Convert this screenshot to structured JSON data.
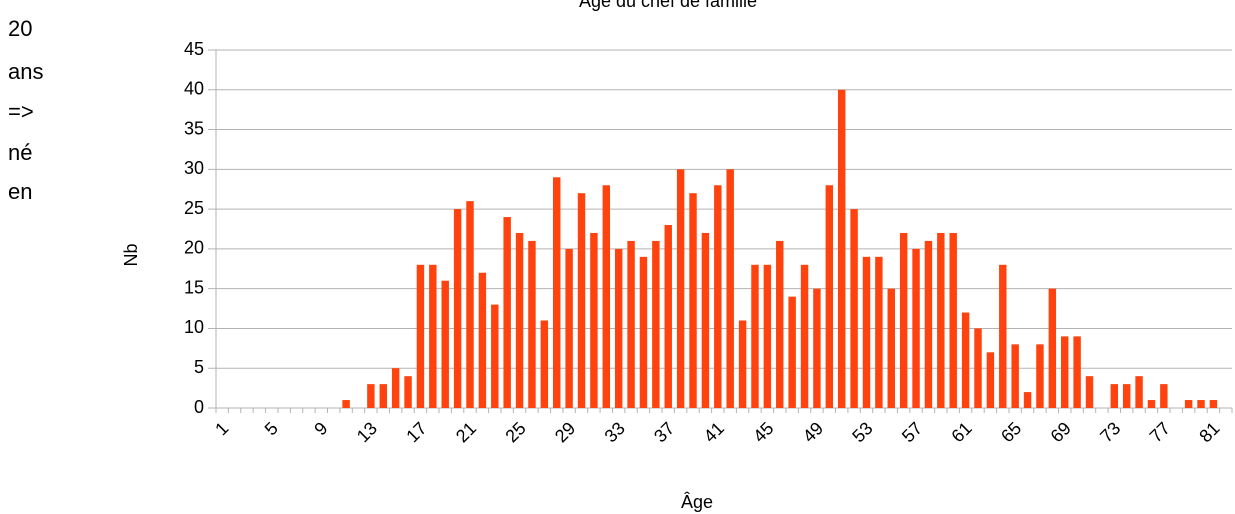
{
  "side_note": [
    "20",
    "ans",
    "=>",
    "né",
    "en"
  ],
  "chart_data": {
    "type": "bar",
    "title": "Âge du chef de famille",
    "x_label": "Âge",
    "y_label": "Nb",
    "categories": [
      "1",
      null,
      null,
      null,
      "5",
      null,
      null,
      null,
      "9",
      null,
      null,
      null,
      "13",
      null,
      null,
      null,
      "17",
      null,
      null,
      null,
      "21",
      null,
      null,
      null,
      "25",
      null,
      null,
      null,
      "29",
      null,
      null,
      null,
      "33",
      null,
      null,
      null,
      "37",
      null,
      null,
      null,
      "41",
      null,
      null,
      null,
      "45",
      null,
      null,
      null,
      "49",
      null,
      null,
      null,
      "53",
      null,
      null,
      null,
      "57",
      null,
      null,
      null,
      "61",
      null,
      null,
      null,
      "65",
      null,
      null,
      null,
      "69",
      null,
      null,
      null,
      "73",
      null,
      null,
      null,
      "77",
      null,
      null,
      null,
      "81",
      null
    ],
    "values": [
      0,
      0,
      0,
      0,
      0,
      0,
      0,
      0,
      0,
      0,
      1,
      0,
      3,
      3,
      5,
      4,
      18,
      18,
      16,
      25,
      26,
      17,
      13,
      24,
      22,
      21,
      11,
      29,
      20,
      27,
      22,
      28,
      20,
      21,
      19,
      21,
      23,
      30,
      27,
      22,
      28,
      30,
      11,
      18,
      18,
      21,
      14,
      18,
      15,
      28,
      40,
      25,
      19,
      19,
      15,
      22,
      20,
      21,
      22,
      22,
      12,
      10,
      7,
      18,
      8,
      2,
      8,
      15,
      9,
      9,
      4,
      0,
      3,
      3,
      4,
      1,
      3,
      0,
      1,
      1,
      1,
      0
    ],
    "color": "#ff420e",
    "ylim": [
      0,
      45
    ],
    "yticks": [
      0,
      5,
      10,
      15,
      20,
      25,
      30,
      35,
      40,
      45
    ],
    "grid": true
  }
}
